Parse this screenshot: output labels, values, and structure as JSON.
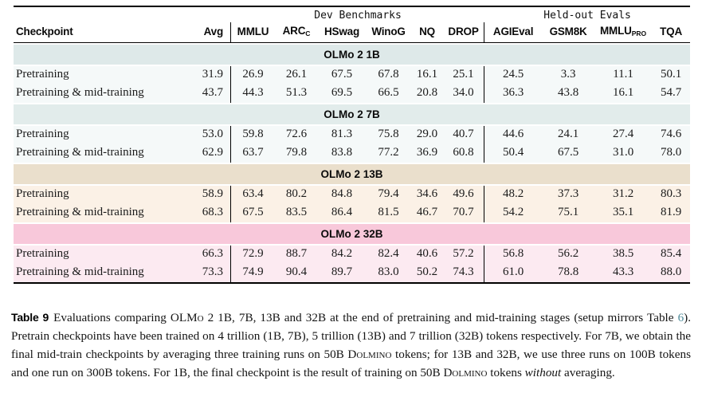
{
  "table": {
    "group_headers": [
      {
        "label": "Dev Benchmarks"
      },
      {
        "label": "Held-out Evals"
      }
    ],
    "columns": [
      {
        "label": "Checkpoint"
      },
      {
        "label": "Avg"
      },
      {
        "label": "MMLU"
      },
      {
        "label": "ARC",
        "sub": "C"
      },
      {
        "label": "HSwag"
      },
      {
        "label": "WinoG"
      },
      {
        "label": "NQ"
      },
      {
        "label": "DROP"
      },
      {
        "label": "AGIEval"
      },
      {
        "label": "GSM8K"
      },
      {
        "label": "MMLU",
        "sub": "PRO"
      },
      {
        "label": "TQA"
      }
    ],
    "sections": [
      {
        "name": "OLMo 2 1B",
        "band_color": "#dee9e9",
        "row_color": "#f5f9f9",
        "rows": [
          {
            "checkpoint": "Pretraining",
            "values": [
              "31.9",
              "26.9",
              "26.1",
              "67.5",
              "67.8",
              "16.1",
              "25.1",
              "24.5",
              "3.3",
              "11.1",
              "50.1"
            ]
          },
          {
            "checkpoint": "Pretraining & mid-training",
            "values": [
              "43.7",
              "44.3",
              "51.3",
              "69.5",
              "66.5",
              "20.8",
              "34.0",
              "36.3",
              "43.8",
              "16.1",
              "54.7"
            ]
          }
        ]
      },
      {
        "name": "OLMo 2 7B",
        "band_color": "#e2eceb",
        "row_color": "#f5f9f9",
        "rows": [
          {
            "checkpoint": "Pretraining",
            "values": [
              "53.0",
              "59.8",
              "72.6",
              "81.3",
              "75.8",
              "29.0",
              "40.7",
              "44.6",
              "24.1",
              "27.4",
              "74.6"
            ]
          },
          {
            "checkpoint": "Pretraining & mid-training",
            "values": [
              "62.9",
              "63.7",
              "79.8",
              "83.8",
              "77.2",
              "36.9",
              "60.8",
              "50.4",
              "67.5",
              "31.0",
              "78.0"
            ]
          }
        ]
      },
      {
        "name": "OLMo 2 13B",
        "band_color": "#eadfcc",
        "row_color": "#fbf1e6",
        "rows": [
          {
            "checkpoint": "Pretraining",
            "values": [
              "58.9",
              "63.4",
              "80.2",
              "84.8",
              "79.4",
              "34.6",
              "49.6",
              "48.2",
              "37.3",
              "31.2",
              "80.3"
            ]
          },
          {
            "checkpoint": "Pretraining & mid-training",
            "values": [
              "68.3",
              "67.5",
              "83.5",
              "86.4",
              "81.5",
              "46.7",
              "70.7",
              "54.2",
              "75.1",
              "35.1",
              "81.9"
            ]
          }
        ]
      },
      {
        "name": "OLMo 2 32B",
        "band_color": "#f8c8da",
        "row_color": "#fceaf1",
        "rows": [
          {
            "checkpoint": "Pretraining",
            "values": [
              "66.3",
              "72.9",
              "88.7",
              "84.2",
              "82.4",
              "40.6",
              "57.2",
              "56.8",
              "56.2",
              "38.5",
              "85.4"
            ]
          },
          {
            "checkpoint": "Pretraining & mid-training",
            "values": [
              "73.3",
              "74.9",
              "90.4",
              "89.7",
              "83.0",
              "50.2",
              "74.3",
              "61.0",
              "78.8",
              "43.3",
              "88.0"
            ]
          }
        ]
      }
    ]
  },
  "caption": {
    "segments": [
      {
        "text": "Table 9",
        "style": "title"
      },
      {
        "text": "Evaluations comparing ",
        "style": "plain"
      },
      {
        "text": "OLMo 2",
        "style": "smallcaps"
      },
      {
        "text": " 1B, 7B, 13B and 32B at the end of pretraining and mid-training stages (setup mirrors Table ",
        "style": "plain"
      },
      {
        "text": "6",
        "style": "link"
      },
      {
        "text": "). Pretrain checkpoints have been trained on 4 trillion (1B, 7B), 5 trillion (13B) and 7 trillion (32B) tokens respectively. For 7B, we obtain the final mid-train checkpoints by averaging three training runs on 50B ",
        "style": "plain"
      },
      {
        "text": "Dolmino",
        "style": "smallcaps"
      },
      {
        "text": " tokens; for 13B and 32B, we use three runs on 100B tokens and one run on 300B tokens. For 1B, the final checkpoint is the result of training on 50B ",
        "style": "plain"
      },
      {
        "text": "Dolmino",
        "style": "smallcaps"
      },
      {
        "text": " tokens ",
        "style": "plain"
      },
      {
        "text": "without",
        "style": "italic"
      },
      {
        "text": " averaging.",
        "style": "plain"
      }
    ]
  }
}
